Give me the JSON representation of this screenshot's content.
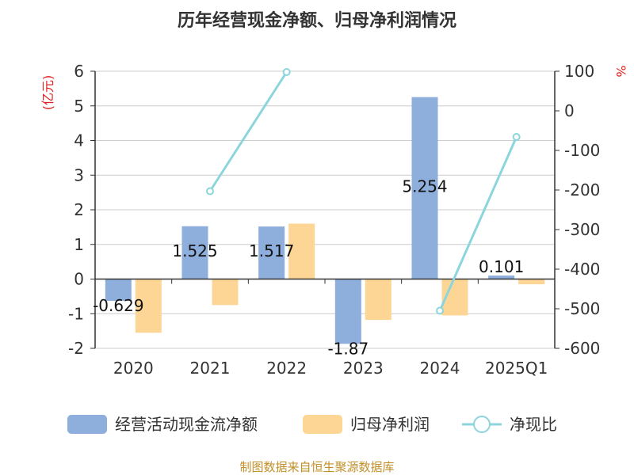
{
  "chart_data": {
    "type": "bar",
    "title": "历年经营现金净额、归母净利润情况",
    "categories": [
      "2020",
      "2021",
      "2022",
      "2023",
      "2024",
      "2025Q1"
    ],
    "left_axis": {
      "unit": "(亿元)",
      "ylim": [
        -2,
        6
      ],
      "ticks": [
        6,
        5,
        4,
        3,
        2,
        1,
        0,
        -1,
        -2
      ]
    },
    "right_axis": {
      "unit": "%",
      "ylim": [
        -600,
        100
      ],
      "ticks": [
        "100",
        "0",
        "-100",
        "-200",
        "-300",
        "-400",
        "-500",
        "-600"
      ]
    },
    "series": [
      {
        "name": "经营活动现金流净额",
        "type": "bar",
        "axis": "left",
        "color": "#8eaedc",
        "values": [
          -0.629,
          1.525,
          1.517,
          -1.87,
          5.254,
          0.101
        ],
        "labels": [
          "-0.629",
          "1.525",
          "1.517",
          "-1.87",
          "5.254",
          "0.101"
        ]
      },
      {
        "name": "归母净利润",
        "type": "bar",
        "axis": "left",
        "color": "#fdd696",
        "values": [
          -1.55,
          -0.75,
          1.6,
          -1.18,
          -1.05,
          -0.15
        ]
      },
      {
        "name": "净现比",
        "type": "line",
        "axis": "right",
        "color": "#8dd5dc",
        "values": [
          null,
          -203,
          98,
          null,
          -505,
          -66
        ]
      }
    ],
    "grid": true,
    "legend_position": "bottom"
  },
  "footer": {
    "source": "制图数据来自恒生聚源数据库"
  }
}
